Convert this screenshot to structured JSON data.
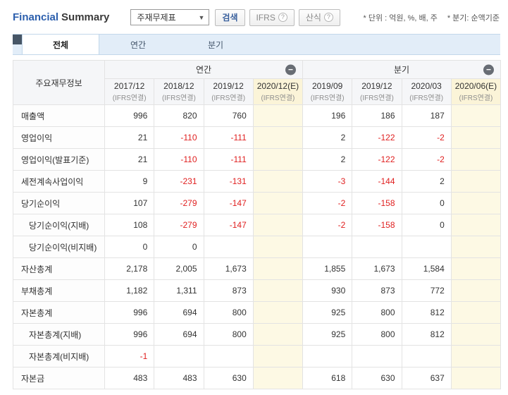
{
  "header": {
    "title_primary": "Financial",
    "title_secondary": "Summary",
    "dropdown_value": "주재무제표",
    "search_button": "검색",
    "ifrs_button": "IFRS",
    "formula_button": "산식",
    "unit_note": "* 단위 : 억원, %, 배, 주",
    "basis_note": "* 분기: 순액기준"
  },
  "icons": {
    "dropdown_arrow": "▼",
    "help": "?",
    "collapse_minus": "−"
  },
  "tabs": [
    {
      "label": "전체",
      "active": true
    },
    {
      "label": "연간",
      "active": false
    },
    {
      "label": "분기",
      "active": false
    }
  ],
  "table": {
    "corner_label": "주요재무정보",
    "groups": [
      {
        "label": "연간"
      },
      {
        "label": "분기"
      }
    ],
    "columns": [
      {
        "period": "2017/12",
        "note": "(IFRS연결)",
        "estimate": false
      },
      {
        "period": "2018/12",
        "note": "(IFRS연결)",
        "estimate": false
      },
      {
        "period": "2019/12",
        "note": "(IFRS연결)",
        "estimate": false
      },
      {
        "period": "2020/12(E)",
        "note": "(IFRS연결)",
        "estimate": true
      },
      {
        "period": "2019/09",
        "note": "(IFRS연결)",
        "estimate": false
      },
      {
        "period": "2019/12",
        "note": "(IFRS연결)",
        "estimate": false
      },
      {
        "period": "2020/03",
        "note": "(IFRS연결)",
        "estimate": false
      },
      {
        "period": "2020/06(E)",
        "note": "(IFRS연결)",
        "estimate": true
      }
    ],
    "rows": [
      {
        "label": "매출액",
        "indent": false,
        "values": [
          "996",
          "820",
          "760",
          "",
          "196",
          "186",
          "187",
          ""
        ]
      },
      {
        "label": "영업이익",
        "indent": false,
        "values": [
          "21",
          "-110",
          "-111",
          "",
          "2",
          "-122",
          "-2",
          ""
        ]
      },
      {
        "label": "영업이익(발표기준)",
        "indent": false,
        "values": [
          "21",
          "-110",
          "-111",
          "",
          "2",
          "-122",
          "-2",
          ""
        ]
      },
      {
        "label": "세전계속사업이익",
        "indent": false,
        "values": [
          "9",
          "-231",
          "-131",
          "",
          "-3",
          "-144",
          "2",
          ""
        ]
      },
      {
        "label": "당기순이익",
        "indent": false,
        "values": [
          "107",
          "-279",
          "-147",
          "",
          "-2",
          "-158",
          "0",
          ""
        ]
      },
      {
        "label": "당기순이익(지배)",
        "indent": true,
        "values": [
          "108",
          "-279",
          "-147",
          "",
          "-2",
          "-158",
          "0",
          ""
        ]
      },
      {
        "label": "당기순이익(비지배)",
        "indent": true,
        "values": [
          "0",
          "0",
          "",
          "",
          "",
          "",
          "",
          ""
        ]
      },
      {
        "label": "자산총계",
        "indent": false,
        "values": [
          "2,178",
          "2,005",
          "1,673",
          "",
          "1,855",
          "1,673",
          "1,584",
          ""
        ]
      },
      {
        "label": "부채총계",
        "indent": false,
        "values": [
          "1,182",
          "1,311",
          "873",
          "",
          "930",
          "873",
          "772",
          ""
        ]
      },
      {
        "label": "자본총계",
        "indent": false,
        "values": [
          "996",
          "694",
          "800",
          "",
          "925",
          "800",
          "812",
          ""
        ]
      },
      {
        "label": "자본총계(지배)",
        "indent": true,
        "values": [
          "996",
          "694",
          "800",
          "",
          "925",
          "800",
          "812",
          ""
        ]
      },
      {
        "label": "자본총계(비지배)",
        "indent": true,
        "values": [
          "-1",
          "",
          "",
          "",
          "",
          "",
          "",
          ""
        ]
      },
      {
        "label": "자본금",
        "indent": false,
        "values": [
          "483",
          "483",
          "630",
          "",
          "618",
          "630",
          "637",
          ""
        ]
      }
    ]
  }
}
